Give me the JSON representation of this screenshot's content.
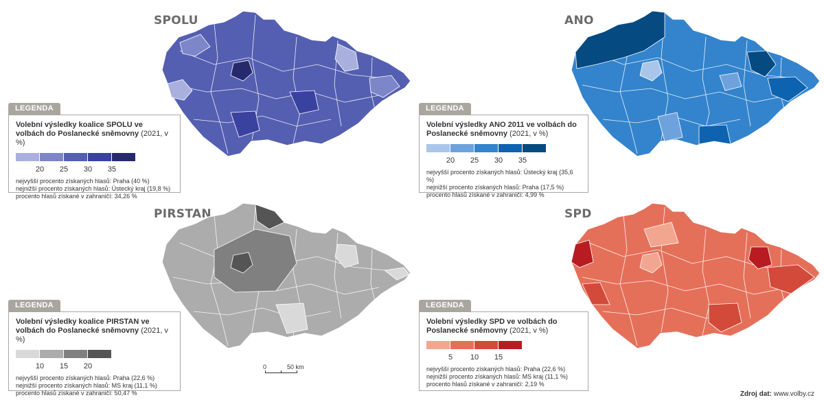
{
  "panels": [
    {
      "id": "spolu",
      "title": "SPOLU",
      "legend_tab": "LEGENDA",
      "legend_title": "Volební výsledky koalice SPOLU ve volbách do Poslanecké sněmovny",
      "legend_subtitle": "(2021, v %)",
      "classes": [
        "#aab0dd",
        "#7d86c8",
        "#555fb1",
        "#3a42a0",
        "#262a6d"
      ],
      "ticks": [
        "20",
        "25",
        "30",
        "35"
      ],
      "stats": [
        "nejvyšší procento získaných hlasů: Praha (40 %)",
        "nejnižší procento získaných hlasů: Ústecký kraj (19,8 %)",
        "procento hlasů získané v zahraničí: 34,26 %"
      ]
    },
    {
      "id": "ano",
      "title": "ANO",
      "legend_tab": "LEGENDA",
      "legend_title": "Volební výsledky ANO 2011 ve volbách do Poslanecké sněmovny",
      "legend_subtitle": "(2021, v %)",
      "classes": [
        "#a9c6ea",
        "#6ea2dc",
        "#3384cc",
        "#0d63b0",
        "#064a82"
      ],
      "ticks": [
        "20",
        "25",
        "30",
        "35"
      ],
      "stats": [
        "nejvyšší procento získaných hlasů: Ústecký kraj (35,6 %)",
        "nejnižší procento získaných hlasů: Praha (17,5 %)",
        "procento hlasů získané v zahraničí: 4,99 %"
      ]
    },
    {
      "id": "pirstan",
      "title": "PIRSTAN",
      "legend_tab": "LEGENDA",
      "legend_title": "Volební výsledky koalice PIRSTAN ve volbách do Poslanecké sněmovny",
      "legend_subtitle": "(2021, v %)",
      "classes": [
        "#d9d9d9",
        "#acacac",
        "#808080",
        "#555555"
      ],
      "ticks": [
        "10",
        "15",
        "20"
      ],
      "stats": [
        "nejvyšší procento získaných hlasů: Praha (22,6 %)",
        "nejnižší procento získaných hlasů: MS kraj (11,1 %)",
        "procento hlasů získané v zahraničí: 50,47 %"
      ]
    },
    {
      "id": "spd",
      "title": "SPD",
      "legend_tab": "LEGENDA",
      "legend_title": "Volební výsledky SPD ve volbách do Poslanecké sněmovny",
      "legend_subtitle": "(2021, v %)",
      "classes": [
        "#f2a690",
        "#e5705a",
        "#d34a3a",
        "#b81c22"
      ],
      "ticks": [
        "5",
        "10",
        "15"
      ],
      "stats": [
        "nejvyšší procento získaných hlasů: Praha (22,6 %)",
        "nejnižší procento získaných hlasů: MS kraj (11,1 %)",
        "procento hlasů získané v zahraničí: 2,19 %"
      ]
    }
  ],
  "scalebar": {
    "start": "0",
    "end": "50 km"
  },
  "source": {
    "label": "Zdroj dat:",
    "value": "www.volby.cz"
  }
}
